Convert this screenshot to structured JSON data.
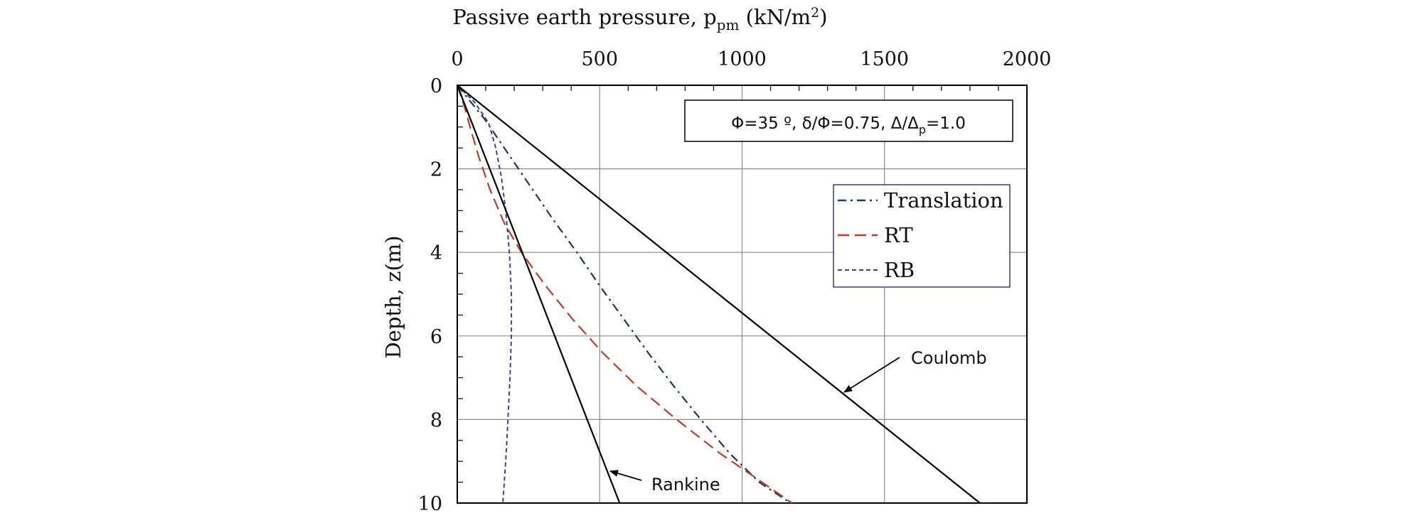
{
  "chart_data": {
    "type": "line",
    "xlabel": {
      "main": "Passive earth pressure, p",
      "sub": "pm",
      "unit_open": " (kN/m",
      "unit_sup": "2",
      "unit_close": ")"
    },
    "ylabel": "Depth, z(m)",
    "xlim": [
      0,
      2000
    ],
    "ylim": [
      0,
      10
    ],
    "x_axis_position": "top",
    "y_inverted": true,
    "x_ticks": [
      0,
      500,
      1000,
      1500,
      2000
    ],
    "y_ticks": [
      0,
      2,
      4,
      6,
      8,
      10
    ],
    "grid": true,
    "parameter_box": {
      "main": "Φ=35 º, δ/Φ=0.75, Δ/Δ",
      "sub": "p",
      "tail": "=1.0"
    },
    "legend_position": "upper-right",
    "series": [
      {
        "name": "Translation",
        "style": "dash-dot",
        "color": "#1f3a5f",
        "points": [
          [
            0,
            0
          ],
          [
            95,
            0.8
          ],
          [
            175,
            1.6
          ],
          [
            255,
            2.4
          ],
          [
            335,
            3.2
          ],
          [
            420,
            4.0
          ],
          [
            500,
            4.8
          ],
          [
            585,
            5.6
          ],
          [
            670,
            6.4
          ],
          [
            760,
            7.2
          ],
          [
            855,
            8.0
          ],
          [
            955,
            8.8
          ],
          [
            1060,
            9.5
          ],
          [
            1170,
            10.0
          ]
        ]
      },
      {
        "name": "RT",
        "style": "dashed",
        "color": "#c0392b",
        "points": [
          [
            0,
            0
          ],
          [
            25,
            0.5
          ],
          [
            45,
            1.0
          ],
          [
            75,
            1.7
          ],
          [
            115,
            2.5
          ],
          [
            165,
            3.3
          ],
          [
            225,
            4.0
          ],
          [
            310,
            4.8
          ],
          [
            405,
            5.6
          ],
          [
            510,
            6.4
          ],
          [
            630,
            7.2
          ],
          [
            770,
            8.0
          ],
          [
            920,
            8.8
          ],
          [
            1070,
            9.5
          ],
          [
            1175,
            10.0
          ]
        ]
      },
      {
        "name": "RB",
        "style": "short-dashed",
        "color": "#4a3f8c",
        "points": [
          [
            0,
            0
          ],
          [
            60,
            0.4
          ],
          [
            110,
            0.9
          ],
          [
            135,
            1.5
          ],
          [
            155,
            2.2
          ],
          [
            170,
            3.0
          ],
          [
            183,
            4.0
          ],
          [
            190,
            5.0
          ],
          [
            190,
            6.0
          ],
          [
            185,
            7.0
          ],
          [
            178,
            8.0
          ],
          [
            170,
            9.0
          ],
          [
            160,
            10.0
          ]
        ]
      },
      {
        "name": "Rankine",
        "style": "solid",
        "color": "#000000",
        "points": [
          [
            0,
            0
          ],
          [
            570,
            10.0
          ]
        ]
      },
      {
        "name": "Coulomb",
        "style": "solid",
        "color": "#000000",
        "points": [
          [
            0,
            0
          ],
          [
            1835,
            10.0
          ]
        ]
      }
    ],
    "annotations": [
      {
        "text": "Coulomb",
        "target": [
          1355,
          7.35
        ],
        "label_at": [
          1620,
          6.6
        ]
      },
      {
        "text": "Rankine",
        "target": [
          530,
          9.35
        ],
        "label_at": [
          680,
          9.75
        ]
      }
    ]
  }
}
